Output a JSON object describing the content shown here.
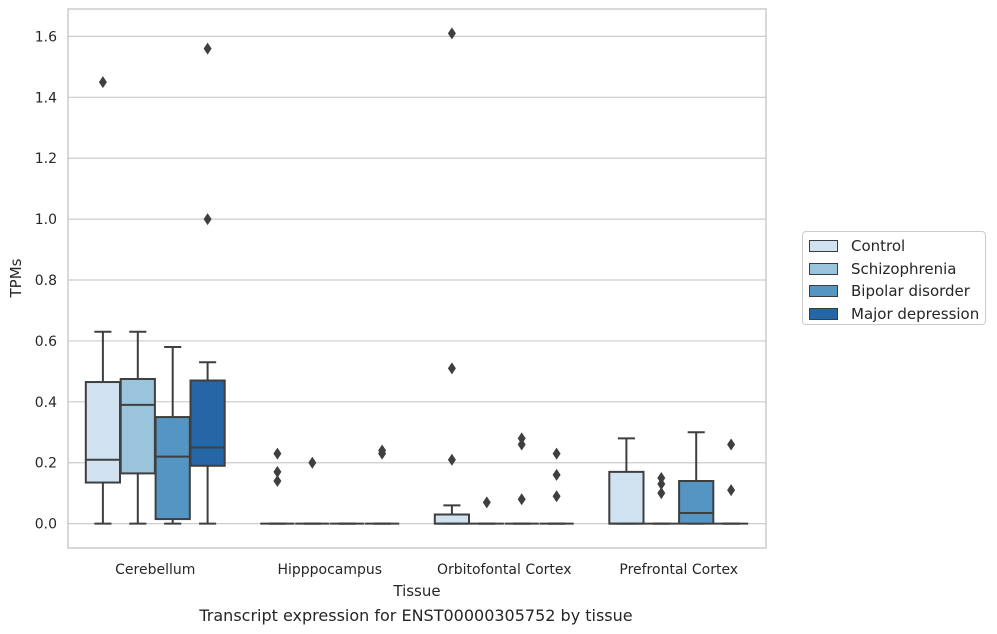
{
  "chart_data": {
    "type": "box",
    "title": "",
    "caption": "Transcript expression for ENST00000305752 by tissue",
    "xlabel": "Tissue",
    "ylabel": "TPMs",
    "ylim": [
      -0.08,
      1.69
    ],
    "yticks": [
      0.0,
      0.2,
      0.4,
      0.6,
      0.8,
      1.0,
      1.2,
      1.4,
      1.6
    ],
    "ytick_labels": [
      "0.0",
      "0.2",
      "0.4",
      "0.6",
      "0.8",
      "1.0",
      "1.2",
      "1.4",
      "1.6"
    ],
    "grid": "horizontal",
    "legend_position": "right-outside",
    "categories": [
      "Cerebellum",
      "Hipppocampus",
      "Orbitofontal Cortex",
      "Prefrontal Cortex"
    ],
    "series": [
      {
        "name": "Control",
        "color": "#d0e1f0",
        "boxes": [
          {
            "whisker_low": 0.0,
            "q1": 0.135,
            "median": 0.21,
            "q3": 0.465,
            "whisker_high": 0.63,
            "outliers": [
              1.45
            ]
          },
          {
            "whisker_low": 0.0,
            "q1": 0.0,
            "median": 0.0,
            "q3": 0.0,
            "whisker_high": 0.0,
            "outliers": [
              0.14,
              0.17,
              0.23
            ]
          },
          {
            "whisker_low": 0.0,
            "q1": 0.0,
            "median": 0.0,
            "q3": 0.03,
            "whisker_high": 0.06,
            "outliers": [
              0.21,
              0.51,
              1.61
            ]
          },
          {
            "whisker_low": 0.0,
            "q1": 0.0,
            "median": 0.0,
            "q3": 0.17,
            "whisker_high": 0.28,
            "outliers": []
          }
        ]
      },
      {
        "name": "Schizophrenia",
        "color": "#9ac4dc",
        "boxes": [
          {
            "whisker_low": 0.0,
            "q1": 0.165,
            "median": 0.39,
            "q3": 0.475,
            "whisker_high": 0.63,
            "outliers": []
          },
          {
            "whisker_low": 0.0,
            "q1": 0.0,
            "median": 0.0,
            "q3": 0.0,
            "whisker_high": 0.0,
            "outliers": [
              0.2
            ]
          },
          {
            "whisker_low": 0.0,
            "q1": 0.0,
            "median": 0.0,
            "q3": 0.0,
            "whisker_high": 0.0,
            "outliers": [
              0.07
            ]
          },
          {
            "whisker_low": 0.0,
            "q1": 0.0,
            "median": 0.0,
            "q3": 0.0,
            "whisker_high": 0.0,
            "outliers": [
              0.1,
              0.13,
              0.15
            ]
          }
        ]
      },
      {
        "name": "Bipolar disorder",
        "color": "#5495c4",
        "boxes": [
          {
            "whisker_low": 0.0,
            "q1": 0.015,
            "median": 0.22,
            "q3": 0.35,
            "whisker_high": 0.58,
            "outliers": []
          },
          {
            "whisker_low": 0.0,
            "q1": 0.0,
            "median": 0.0,
            "q3": 0.0,
            "whisker_high": 0.0,
            "outliers": []
          },
          {
            "whisker_low": 0.0,
            "q1": 0.0,
            "median": 0.0,
            "q3": 0.0,
            "whisker_high": 0.0,
            "outliers": [
              0.08,
              0.26,
              0.28
            ]
          },
          {
            "whisker_low": 0.0,
            "q1": 0.0,
            "median": 0.035,
            "q3": 0.14,
            "whisker_high": 0.3,
            "outliers": []
          }
        ]
      },
      {
        "name": "Major depression",
        "color": "#2566a6",
        "boxes": [
          {
            "whisker_low": 0.0,
            "q1": 0.19,
            "median": 0.25,
            "q3": 0.47,
            "whisker_high": 0.53,
            "outliers": [
              1.0,
              1.56
            ]
          },
          {
            "whisker_low": 0.0,
            "q1": 0.0,
            "median": 0.0,
            "q3": 0.0,
            "whisker_high": 0.0,
            "outliers": [
              0.23,
              0.24
            ]
          },
          {
            "whisker_low": 0.0,
            "q1": 0.0,
            "median": 0.0,
            "q3": 0.0,
            "whisker_high": 0.0,
            "outliers": [
              0.09,
              0.16,
              0.23
            ]
          },
          {
            "whisker_low": 0.0,
            "q1": 0.0,
            "median": 0.0,
            "q3": 0.0,
            "whisker_high": 0.0,
            "outliers": [
              0.11,
              0.26
            ]
          }
        ]
      }
    ]
  }
}
